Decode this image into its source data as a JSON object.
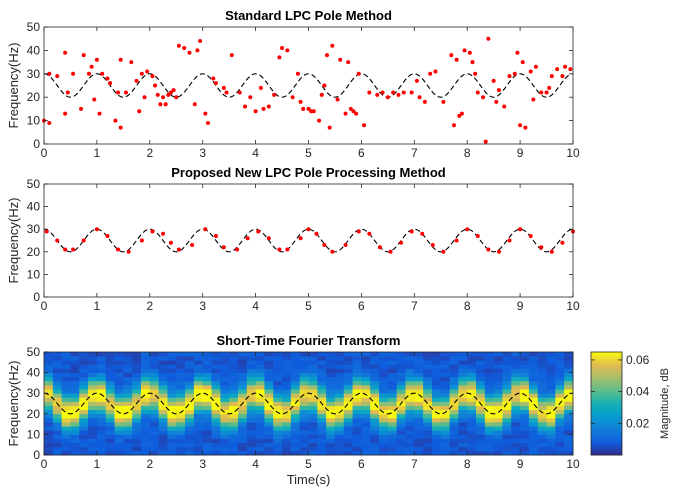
{
  "chart_data": [
    {
      "type": "scatter",
      "title": "Standard LPC Pole Method",
      "xlabel": "",
      "ylabel": "Frequency(Hz)",
      "xlim": [
        0,
        10
      ],
      "ylim": [
        0,
        50
      ],
      "xticks": [
        0,
        1,
        2,
        3,
        4,
        5,
        6,
        7,
        8,
        9,
        10
      ],
      "yticks": [
        0,
        10,
        20,
        30,
        40,
        50
      ],
      "reference_curve": {
        "style": "dashed",
        "color": "#000000",
        "formula": "25 + 5*cos(2*pi*x)",
        "x_range": [
          0,
          10
        ]
      },
      "points_color": "#ff0000",
      "points": [
        [
          0.0,
          10
        ],
        [
          0.1,
          9
        ],
        [
          0.1,
          30
        ],
        [
          0.25,
          29
        ],
        [
          0.4,
          39
        ],
        [
          0.4,
          13
        ],
        [
          0.45,
          22
        ],
        [
          0.55,
          30
        ],
        [
          0.7,
          15
        ],
        [
          0.75,
          38
        ],
        [
          0.85,
          30
        ],
        [
          0.9,
          33
        ],
        [
          0.95,
          19
        ],
        [
          1.0,
          36
        ],
        [
          1.05,
          13
        ],
        [
          1.1,
          30
        ],
        [
          1.2,
          28
        ],
        [
          1.25,
          26
        ],
        [
          1.35,
          10
        ],
        [
          1.4,
          22
        ],
        [
          1.45,
          36
        ],
        [
          1.45,
          7
        ],
        [
          1.55,
          22
        ],
        [
          1.65,
          35
        ],
        [
          1.75,
          27
        ],
        [
          1.8,
          14
        ],
        [
          1.85,
          30
        ],
        [
          1.9,
          20
        ],
        [
          1.95,
          31
        ],
        [
          2.05,
          29
        ],
        [
          2.1,
          25
        ],
        [
          2.15,
          21
        ],
        [
          2.2,
          17
        ],
        [
          2.25,
          20
        ],
        [
          2.3,
          17
        ],
        [
          2.35,
          21
        ],
        [
          2.4,
          22
        ],
        [
          2.45,
          23
        ],
        [
          2.5,
          20
        ],
        [
          2.55,
          42
        ],
        [
          2.65,
          41
        ],
        [
          2.75,
          39
        ],
        [
          2.85,
          17
        ],
        [
          2.9,
          40
        ],
        [
          2.95,
          44
        ],
        [
          3.05,
          13
        ],
        [
          3.1,
          9
        ],
        [
          3.2,
          28
        ],
        [
          3.25,
          26
        ],
        [
          3.4,
          24
        ],
        [
          3.45,
          22
        ],
        [
          3.55,
          38
        ],
        [
          3.7,
          22
        ],
        [
          3.8,
          16
        ],
        [
          3.9,
          20
        ],
        [
          4.0,
          14
        ],
        [
          4.1,
          24
        ],
        [
          4.15,
          15
        ],
        [
          4.25,
          16
        ],
        [
          4.35,
          21
        ],
        [
          4.45,
          37
        ],
        [
          4.5,
          41
        ],
        [
          4.6,
          40
        ],
        [
          4.7,
          20
        ],
        [
          4.8,
          30
        ],
        [
          4.85,
          18
        ],
        [
          4.9,
          15
        ],
        [
          5.0,
          15
        ],
        [
          5.05,
          14
        ],
        [
          5.1,
          14
        ],
        [
          5.2,
          10
        ],
        [
          5.25,
          21
        ],
        [
          5.3,
          25
        ],
        [
          5.35,
          38
        ],
        [
          5.4,
          7
        ],
        [
          5.45,
          42
        ],
        [
          5.55,
          19
        ],
        [
          5.6,
          36
        ],
        [
          5.7,
          13
        ],
        [
          5.75,
          35
        ],
        [
          5.8,
          15
        ],
        [
          5.85,
          14
        ],
        [
          5.9,
          13
        ],
        [
          5.95,
          30
        ],
        [
          6.05,
          8
        ],
        [
          6.15,
          22
        ],
        [
          6.3,
          21
        ],
        [
          6.4,
          22
        ],
        [
          6.5,
          20
        ],
        [
          6.6,
          22
        ],
        [
          6.7,
          21
        ],
        [
          6.8,
          22
        ],
        [
          6.95,
          22
        ],
        [
          7.05,
          27
        ],
        [
          7.1,
          20
        ],
        [
          7.2,
          18
        ],
        [
          7.3,
          30
        ],
        [
          7.4,
          31
        ],
        [
          7.55,
          18
        ],
        [
          7.7,
          38
        ],
        [
          7.75,
          8
        ],
        [
          7.8,
          36
        ],
        [
          7.85,
          12
        ],
        [
          7.9,
          13
        ],
        [
          7.95,
          40
        ],
        [
          8.05,
          39
        ],
        [
          8.1,
          35
        ],
        [
          8.15,
          30
        ],
        [
          8.2,
          22
        ],
        [
          8.3,
          20
        ],
        [
          8.35,
          1
        ],
        [
          8.4,
          45
        ],
        [
          8.5,
          27
        ],
        [
          8.55,
          18
        ],
        [
          8.6,
          23
        ],
        [
          8.7,
          16
        ],
        [
          8.8,
          29
        ],
        [
          8.9,
          30
        ],
        [
          8.95,
          39
        ],
        [
          9.0,
          8
        ],
        [
          9.05,
          35
        ],
        [
          9.1,
          7
        ],
        [
          9.2,
          31
        ],
        [
          9.25,
          19
        ],
        [
          9.3,
          33
        ],
        [
          9.4,
          22
        ],
        [
          9.5,
          22
        ],
        [
          9.55,
          24
        ],
        [
          9.6,
          29
        ],
        [
          9.7,
          32
        ],
        [
          9.8,
          29
        ],
        [
          9.85,
          33
        ],
        [
          9.95,
          32
        ]
      ]
    },
    {
      "type": "scatter",
      "title": "Proposed New LPC Pole Processing Method",
      "xlabel": "",
      "ylabel": "Frequency(Hz)",
      "xlim": [
        0,
        10
      ],
      "ylim": [
        0,
        50
      ],
      "xticks": [
        0,
        1,
        2,
        3,
        4,
        5,
        6,
        7,
        8,
        9,
        10
      ],
      "yticks": [
        0,
        10,
        20,
        30,
        40,
        50
      ],
      "reference_curve": {
        "style": "dashed",
        "color": "#000000",
        "formula": "25 + 5*cos(2*pi*x)",
        "x_range": [
          0,
          10
        ]
      },
      "points_color": "#ff0000",
      "points": [
        [
          0.05,
          29
        ],
        [
          0.25,
          25
        ],
        [
          0.4,
          21
        ],
        [
          0.55,
          21
        ],
        [
          0.75,
          25
        ],
        [
          1.0,
          30
        ],
        [
          1.2,
          27
        ],
        [
          1.4,
          21
        ],
        [
          1.6,
          20
        ],
        [
          1.85,
          25
        ],
        [
          2.05,
          29
        ],
        [
          2.25,
          28
        ],
        [
          2.4,
          24
        ],
        [
          2.55,
          21
        ],
        [
          2.8,
          23
        ],
        [
          3.05,
          30
        ],
        [
          3.25,
          27
        ],
        [
          3.4,
          22
        ],
        [
          3.65,
          21
        ],
        [
          3.85,
          26
        ],
        [
          4.05,
          29
        ],
        [
          4.25,
          26
        ],
        [
          4.45,
          21
        ],
        [
          4.6,
          21
        ],
        [
          4.85,
          26
        ],
        [
          5.0,
          30
        ],
        [
          5.15,
          28
        ],
        [
          5.3,
          23
        ],
        [
          5.45,
          20
        ],
        [
          5.7,
          23
        ],
        [
          5.95,
          29
        ],
        [
          6.15,
          28
        ],
        [
          6.35,
          22
        ],
        [
          6.55,
          20
        ],
        [
          6.75,
          24
        ],
        [
          6.95,
          29
        ],
        [
          7.15,
          28
        ],
        [
          7.35,
          23
        ],
        [
          7.55,
          20
        ],
        [
          7.8,
          25
        ],
        [
          8.0,
          30
        ],
        [
          8.2,
          27
        ],
        [
          8.4,
          21
        ],
        [
          8.6,
          20
        ],
        [
          8.8,
          25
        ],
        [
          9.0,
          30
        ],
        [
          9.2,
          27
        ],
        [
          9.4,
          22
        ],
        [
          9.6,
          20
        ],
        [
          9.8,
          24
        ],
        [
          10.0,
          29
        ]
      ]
    },
    {
      "type": "heatmap",
      "title": "Short-Time Fourier Transform",
      "xlabel": "Time(s)",
      "ylabel": "Frequency(Hz)",
      "xlim": [
        0,
        10
      ],
      "ylim": [
        0,
        50
      ],
      "xticks": [
        0,
        1,
        2,
        3,
        4,
        5,
        6,
        7,
        8,
        9,
        10
      ],
      "yticks": [
        0,
        10,
        20,
        30,
        40,
        50
      ],
      "colormap": "parula",
      "colorbar": {
        "label": "Magnitude, dB",
        "ticks": [
          0.02,
          0.04,
          0.06
        ],
        "range": [
          0,
          0.065
        ]
      },
      "reference_curve": {
        "style": "dashed",
        "color": "#000000",
        "formula": "25 + 5*cos(2*pi*x)",
        "x_range": [
          0,
          10
        ]
      },
      "peak_track": "magnitude peaks near 0.06 along 25 + 5*cos(2*pi*t), spreading roughly ±8 Hz"
    }
  ]
}
